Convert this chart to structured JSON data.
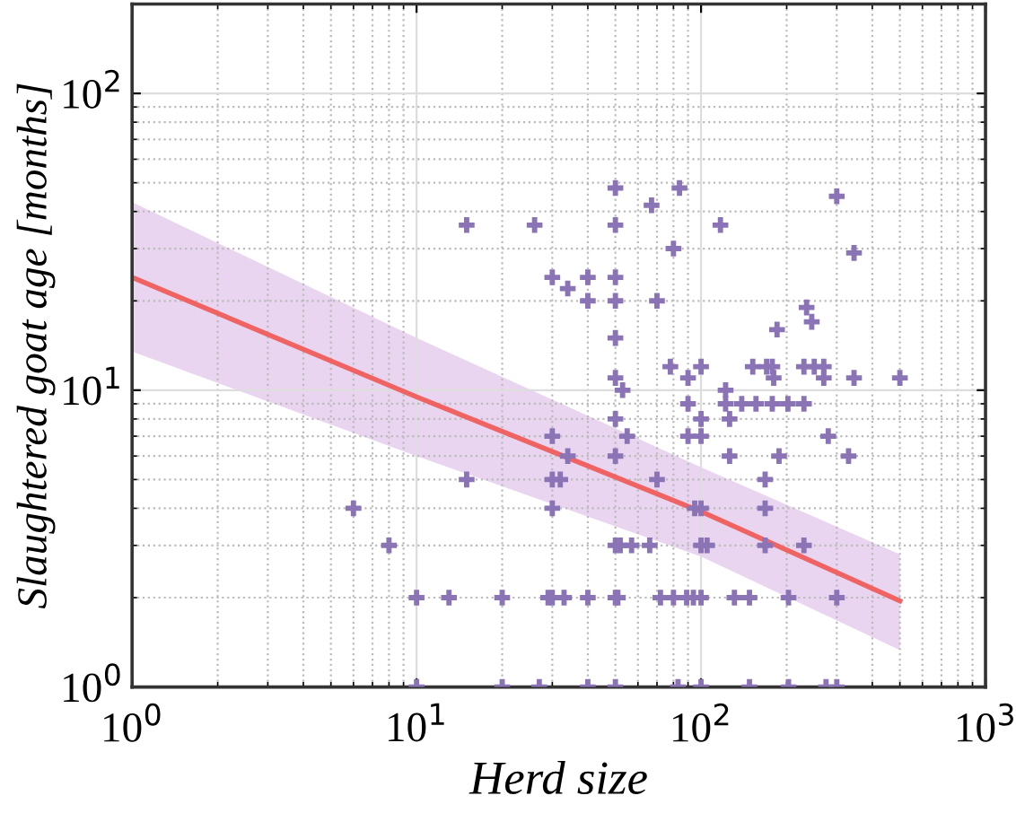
{
  "chart_data": {
    "type": "scatter",
    "xlabel": "Herd size",
    "ylabel": "Slaughtered goat age [months]",
    "log": "xy",
    "grid": true,
    "xlim": [
      1,
      1000
    ],
    "ylim": [
      1,
      200
    ],
    "xticks": [
      {
        "value": 1,
        "label": "10$^{0}$"
      },
      {
        "value": 10,
        "label": "10$^{1}$"
      },
      {
        "value": 100,
        "label": "10$^{2}$"
      },
      {
        "value": 1000,
        "label": "10$^{3}$"
      }
    ],
    "yticks": [
      {
        "value": 1,
        "label": "10$^{0}$"
      },
      {
        "value": 10,
        "label": "10$^{1}$"
      },
      {
        "value": 100,
        "label": "10$^{2}$"
      }
    ],
    "series": [
      {
        "type": "line",
        "color": "#f06363",
        "line_style": "solid",
        "marker": "none",
        "x": [
          1,
          10,
          100,
          500
        ],
        "values": [
          24,
          9.5,
          3.9,
          1.95
        ],
        "lower": [
          13.5,
          6,
          2.75,
          1.33
        ],
        "upper": [
          43,
          15,
          5.5,
          2.8
        ]
      },
      {
        "color": "#8a74b5",
        "marker": "cross",
        "x": [
          15,
          26,
          50,
          50,
          67,
          84,
          117,
          80,
          300,
          345,
          30,
          34,
          40,
          50,
          40,
          50,
          70,
          50,
          50,
          53,
          78,
          90,
          100,
          152,
          170,
          178,
          180,
          185,
          235,
          245,
          230,
          250,
          270,
          270,
          345,
          500,
          122,
          90,
          122,
          139,
          156,
          178,
          202,
          230,
          50,
          100,
          126,
          30,
          55,
          90,
          100,
          280,
          34,
          50,
          126,
          188,
          330,
          15,
          30,
          32,
          70,
          168,
          6,
          30,
          95,
          100,
          168,
          8,
          50,
          52,
          57,
          66,
          100,
          105,
          168,
          230,
          10,
          13,
          20,
          29,
          30,
          33,
          40,
          50,
          51,
          72,
          80,
          89,
          94,
          100,
          131,
          148,
          203,
          300,
          10,
          20,
          27,
          40,
          50,
          83,
          100,
          148,
          203,
          275,
          300
        ],
        "values": [
          36,
          36,
          48,
          36,
          42,
          48,
          36,
          30,
          45,
          29,
          24,
          22,
          24,
          24,
          20,
          20,
          20,
          15,
          11,
          10,
          12,
          11,
          12,
          12,
          12,
          12,
          11,
          16,
          19,
          17,
          12,
          12,
          12,
          11,
          11,
          11,
          10,
          9,
          9,
          9,
          9,
          9,
          9,
          9,
          8,
          8,
          8,
          7,
          7,
          7,
          7,
          7,
          6,
          6,
          6,
          6,
          6,
          5,
          5,
          5,
          5,
          5,
          4,
          4,
          4,
          4,
          4,
          3,
          3,
          3,
          3,
          3,
          3,
          3,
          3,
          3,
          2,
          2,
          2,
          2,
          2,
          2,
          2,
          2,
          2,
          2,
          2,
          2,
          2,
          2,
          2,
          2,
          2,
          2,
          1,
          1,
          1,
          1,
          1,
          1,
          1,
          1,
          1,
          1,
          1
        ]
      }
    ]
  }
}
